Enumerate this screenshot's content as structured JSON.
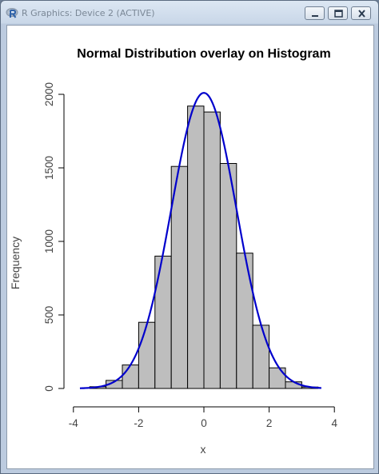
{
  "window": {
    "title": "R Graphics: Device 2 (ACTIVE)",
    "buttons": {
      "minimize": "minimize-icon",
      "maximize": "maximize-icon",
      "close": "close-icon"
    }
  },
  "chart_data": {
    "type": "bar",
    "title": "Normal Distribution overlay on Histogram",
    "xlabel": "x",
    "ylabel": "Frequency",
    "xlim": [
      -4,
      4
    ],
    "ylim": [
      0,
      2000
    ],
    "x_ticks": [
      "-4",
      "-2",
      "0",
      "2",
      "4"
    ],
    "y_ticks": [
      "0",
      "500",
      "1000",
      "1500",
      "2000"
    ],
    "bin_width": 0.5,
    "bins": [
      {
        "x0": -3.5,
        "x1": -3.0,
        "count": 12
      },
      {
        "x0": -3.0,
        "x1": -2.5,
        "count": 55
      },
      {
        "x0": -2.5,
        "x1": -2.0,
        "count": 160
      },
      {
        "x0": -2.0,
        "x1": -1.5,
        "count": 450
      },
      {
        "x0": -1.5,
        "x1": -1.0,
        "count": 900
      },
      {
        "x0": -1.0,
        "x1": -0.5,
        "count": 1510
      },
      {
        "x0": -0.5,
        "x1": 0.0,
        "count": 1920
      },
      {
        "x0": 0.0,
        "x1": 0.5,
        "count": 1880
      },
      {
        "x0": 0.5,
        "x1": 1.0,
        "count": 1530
      },
      {
        "x0": 1.0,
        "x1": 1.5,
        "count": 920
      },
      {
        "x0": 1.5,
        "x1": 2.0,
        "count": 430
      },
      {
        "x0": 2.0,
        "x1": 2.5,
        "count": 140
      },
      {
        "x0": 2.5,
        "x1": 3.0,
        "count": 45
      },
      {
        "x0": 3.0,
        "x1": 3.5,
        "count": 10
      }
    ],
    "curve": {
      "type": "line",
      "distribution": "normal",
      "mean": 0,
      "sd": 1,
      "peak": 2010,
      "x_range": [
        -3.8,
        3.6
      ]
    },
    "colors": {
      "bar_fill": "#bebebe",
      "bar_stroke": "#000000",
      "curve": "#0000cc"
    },
    "grid": false
  }
}
